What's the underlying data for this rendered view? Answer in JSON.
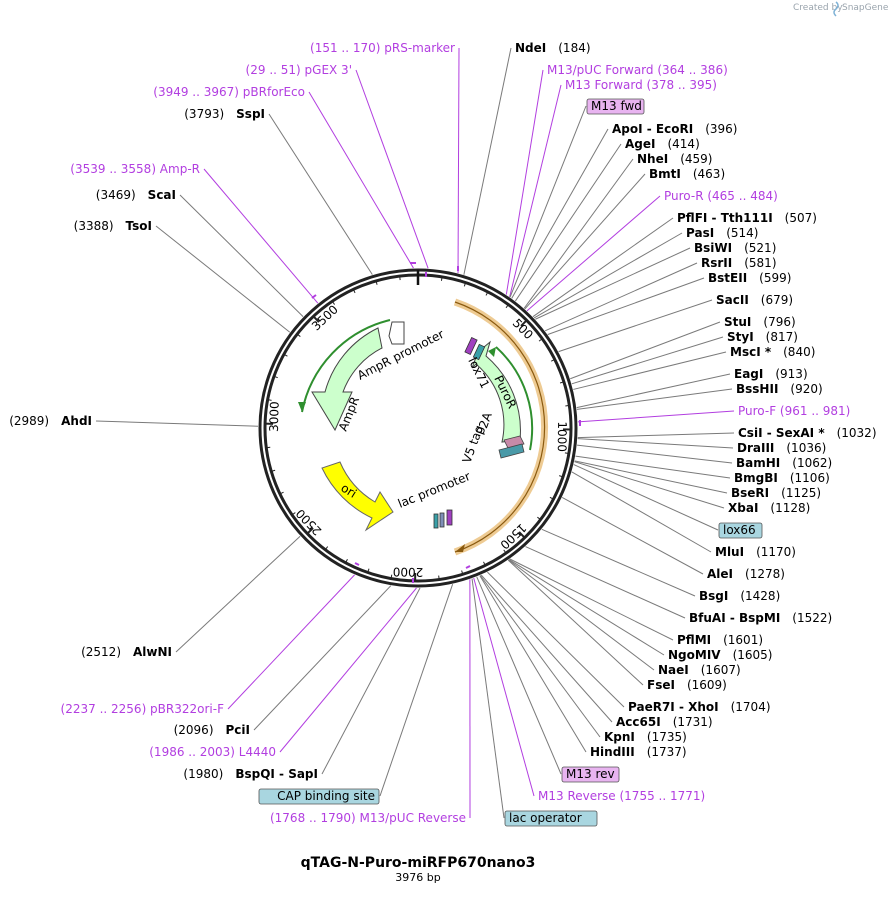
{
  "credit": "Created by",
  "brand": "SnapGene",
  "plasmid": {
    "name": "qTAG-N-Puro-miRFP670nano3",
    "length": "3976 bp"
  },
  "ticks": [
    "500",
    "1000",
    "1500",
    "2000",
    "2500",
    "3000",
    "3500"
  ],
  "features": {
    "amp_promoter": "AmpR promoter",
    "ampr": "AmpR",
    "ori": "ori",
    "lac_promoter": "lac promoter",
    "puror": "PuroR",
    "lox71": "lox71",
    "p2a": "P2A",
    "v5": "V5 tag"
  },
  "left_labels": [
    {
      "text": "(151 .. 170)  pRS-marker",
      "kind": "primer"
    },
    {
      "text": "(29 .. 51)  pGEX 3'",
      "kind": "primer"
    },
    {
      "text": "(3949 .. 3967)  pBRforEco",
      "kind": "primer"
    },
    {
      "pos": "(3793)",
      "name": "SspI",
      "kind": "enzyme"
    },
    {
      "text": "(3539 .. 3558)  Amp-R",
      "kind": "primer"
    },
    {
      "pos": "(3469)",
      "name": "ScaI",
      "kind": "enzyme"
    },
    {
      "pos": "(3388)",
      "name": "TsoI",
      "kind": "enzyme"
    },
    {
      "pos": "(2989)",
      "name": "AhdI",
      "kind": "enzyme"
    },
    {
      "pos": "(2512)",
      "name": "AlwNI",
      "kind": "enzyme"
    },
    {
      "text": "(2237 .. 2256)  pBR322ori-F",
      "kind": "primer"
    },
    {
      "pos": "(2096)",
      "name": "PciI",
      "kind": "enzyme"
    },
    {
      "text": "(1986 .. 2003)  L4440",
      "kind": "primer"
    },
    {
      "pos": "(1980)",
      "name": "BspQI  -  SapI",
      "kind": "enzyme"
    },
    {
      "box": "CAP binding site",
      "kind": "box"
    },
    {
      "text": "(1768 .. 1790)  M13/pUC Reverse",
      "kind": "primer"
    }
  ],
  "right_labels": [
    {
      "name": "NdeI",
      "pos": "(184)",
      "kind": "enzyme"
    },
    {
      "text": "M13/pUC Forward   (364 .. 386)",
      "kind": "primer"
    },
    {
      "text": "M13 Forward   (378 .. 395)",
      "kind": "primer"
    },
    {
      "box": "M13 fwd",
      "kind": "box"
    },
    {
      "name": "ApoI  -  EcoRI",
      "pos": "(396)",
      "kind": "enzyme"
    },
    {
      "name": "AgeI",
      "pos": "(414)",
      "kind": "enzyme"
    },
    {
      "name": "NheI",
      "pos": "(459)",
      "kind": "enzyme"
    },
    {
      "name": "BmtI",
      "pos": "(463)",
      "kind": "enzyme"
    },
    {
      "text": "Puro-R   (465 .. 484)",
      "kind": "primer"
    },
    {
      "name": "PflFI  -  Tth111I",
      "pos": "(507)",
      "kind": "enzyme"
    },
    {
      "name": "PasI",
      "pos": "(514)",
      "kind": "enzyme"
    },
    {
      "name": "BsiWI",
      "pos": "(521)",
      "kind": "enzyme"
    },
    {
      "name": "RsrII",
      "pos": "(581)",
      "kind": "enzyme"
    },
    {
      "name": "BstEII",
      "pos": "(599)",
      "kind": "enzyme"
    },
    {
      "name": "SacII",
      "pos": "(679)",
      "kind": "enzyme"
    },
    {
      "name": "StuI",
      "pos": "(796)",
      "kind": "enzyme"
    },
    {
      "name": "StyI",
      "pos": "(817)",
      "kind": "enzyme"
    },
    {
      "name": "MscI *",
      "pos": "(840)",
      "kind": "enzyme"
    },
    {
      "name": "EagI",
      "pos": "(913)",
      "kind": "enzyme"
    },
    {
      "name": "BssHII",
      "pos": "(920)",
      "kind": "enzyme"
    },
    {
      "text": "Puro-F   (961 .. 981)",
      "kind": "primer"
    },
    {
      "name": "CsiI  -  SexAI *",
      "pos": "(1032)",
      "kind": "enzyme"
    },
    {
      "name": "DraIII",
      "pos": "(1036)",
      "kind": "enzyme"
    },
    {
      "name": "BamHI",
      "pos": "(1062)",
      "kind": "enzyme"
    },
    {
      "name": "BmgBI",
      "pos": "(1106)",
      "kind": "enzyme"
    },
    {
      "name": "BseRI",
      "pos": "(1125)",
      "kind": "enzyme"
    },
    {
      "name": "XbaI",
      "pos": "(1128)",
      "kind": "enzyme"
    },
    {
      "box": "lox66",
      "kind": "box"
    },
    {
      "name": "MluI",
      "pos": "(1170)",
      "kind": "enzyme"
    },
    {
      "name": "AleI",
      "pos": "(1278)",
      "kind": "enzyme"
    },
    {
      "name": "BsgI",
      "pos": "(1428)",
      "kind": "enzyme"
    },
    {
      "name": "BfuAI  -  BspMI",
      "pos": "(1522)",
      "kind": "enzyme"
    },
    {
      "name": "PflMI",
      "pos": "(1601)",
      "kind": "enzyme"
    },
    {
      "name": "NgoMIV",
      "pos": "(1605)",
      "kind": "enzyme"
    },
    {
      "name": "NaeI",
      "pos": "(1607)",
      "kind": "enzyme"
    },
    {
      "name": "FseI",
      "pos": "(1609)",
      "kind": "enzyme"
    },
    {
      "name": "PaeR7I  -  XhoI",
      "pos": "(1704)",
      "kind": "enzyme"
    },
    {
      "name": "Acc65I",
      "pos": "(1731)",
      "kind": "enzyme"
    },
    {
      "name": "KpnI",
      "pos": "(1735)",
      "kind": "enzyme"
    },
    {
      "name": "HindIII",
      "pos": "(1737)",
      "kind": "enzyme"
    },
    {
      "box": "M13 rev",
      "kind": "box"
    },
    {
      "text": "M13 Reverse   (1755 .. 1771)",
      "kind": "primer"
    },
    {
      "box": "lac operator",
      "kind": "box"
    }
  ],
  "colors": {
    "primer": "#b23ee0",
    "line_gray": "#7a7a7a",
    "feature_green_fill": "#ccffcc",
    "feature_green_stroke": "#2f8f2f",
    "ori_fill": "#ffff00",
    "orange": "#e0a03a",
    "box_purple": "#e8b4f0",
    "box_teal": "#a9d6e0"
  }
}
